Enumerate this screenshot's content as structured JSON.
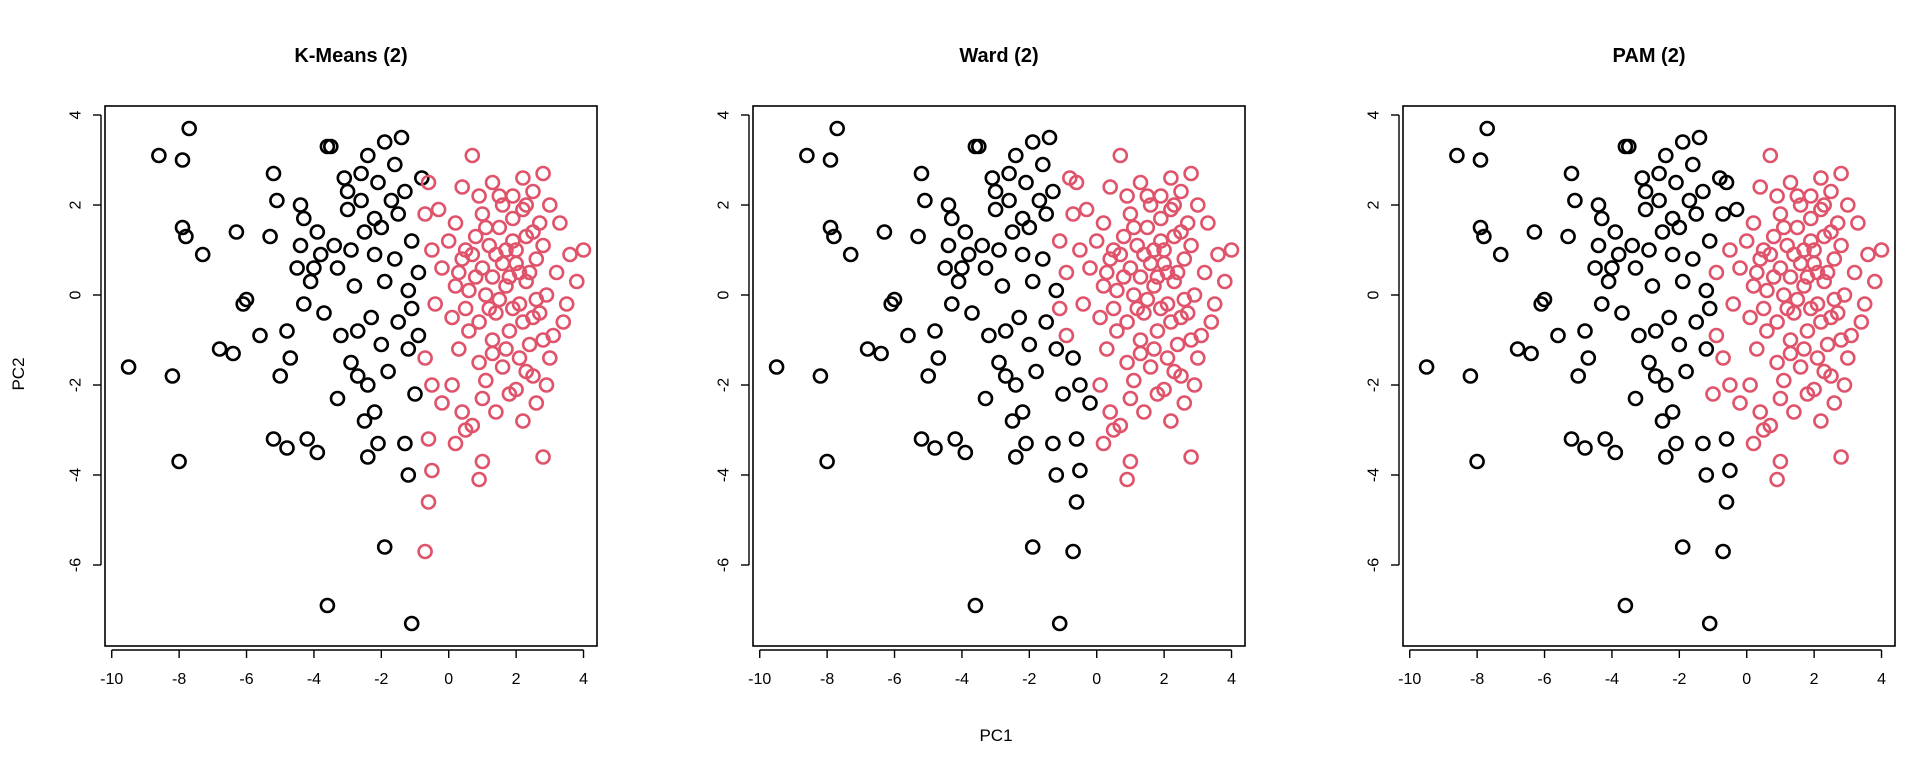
{
  "figure": {
    "x_label": "PC1",
    "y_label": "PC2"
  },
  "colors": {
    "cluster_1": "#000000",
    "cluster_2": "#DF536B"
  },
  "chart_data": [
    {
      "type": "scatter",
      "title": "K-Means (2)",
      "method": "kmeans",
      "xlim": [
        -10,
        4
      ],
      "ylim": [
        -7,
        4
      ],
      "x_ticks": [
        -10,
        -8,
        -6,
        -4,
        -2,
        0,
        2,
        4
      ],
      "y_ticks": [
        -6,
        -4,
        -2,
        0,
        2,
        4
      ],
      "grid": false,
      "legend": "none",
      "series": [
        {
          "cluster": 1,
          "color": "#000000"
        },
        {
          "cluster": 2,
          "color": "#DF536B"
        }
      ]
    },
    {
      "type": "scatter",
      "title": "Ward (2)",
      "method": "ward",
      "xlim": [
        -10,
        4
      ],
      "ylim": [
        -7,
        4
      ],
      "x_ticks": [
        -10,
        -8,
        -6,
        -4,
        -2,
        0,
        2,
        4
      ],
      "y_ticks": [
        -6,
        -4,
        -2,
        0,
        2,
        4
      ],
      "grid": false,
      "legend": "none",
      "series": [
        {
          "cluster": 1,
          "color": "#000000"
        },
        {
          "cluster": 2,
          "color": "#DF536B"
        }
      ]
    },
    {
      "type": "scatter",
      "title": "PAM (2)",
      "method": "pam",
      "xlim": [
        -10,
        4
      ],
      "ylim": [
        -7,
        4
      ],
      "x_ticks": [
        -10,
        -8,
        -6,
        -4,
        -2,
        0,
        2,
        4
      ],
      "y_ticks": [
        -6,
        -4,
        -2,
        0,
        2,
        4
      ],
      "grid": false,
      "legend": "none",
      "series": [
        {
          "cluster": 1,
          "color": "#000000"
        },
        {
          "cluster": 2,
          "color": "#DF536B"
        }
      ]
    }
  ],
  "points": [
    [
      -9.5,
      -1.6
    ],
    [
      -8.2,
      -1.8
    ],
    [
      -8.0,
      -3.7
    ],
    [
      -8.6,
      3.1
    ],
    [
      -7.9,
      3.0
    ],
    [
      -7.7,
      3.7
    ],
    [
      -7.9,
      1.5
    ],
    [
      -7.8,
      1.3
    ],
    [
      -7.3,
      0.9
    ],
    [
      -6.8,
      -1.2
    ],
    [
      -6.4,
      -1.3
    ],
    [
      -6.3,
      1.4
    ],
    [
      -6.0,
      -0.1
    ],
    [
      -6.1,
      -0.2
    ],
    [
      -5.6,
      -0.9
    ],
    [
      -5.2,
      2.7
    ],
    [
      -5.1,
      2.1
    ],
    [
      -5.3,
      1.3
    ],
    [
      -5.0,
      -1.8
    ],
    [
      -4.8,
      -0.8
    ],
    [
      -4.7,
      -1.4
    ],
    [
      -4.5,
      0.6
    ],
    [
      -4.4,
      2.0
    ],
    [
      -4.3,
      1.7
    ],
    [
      -4.1,
      0.3
    ],
    [
      -4.0,
      0.6
    ],
    [
      -4.3,
      -0.2
    ],
    [
      -3.9,
      1.4
    ],
    [
      -3.8,
      0.9
    ],
    [
      -3.6,
      3.3
    ],
    [
      -3.5,
      3.3
    ],
    [
      -3.4,
      1.1
    ],
    [
      -3.3,
      0.6
    ],
    [
      -3.2,
      -0.9
    ],
    [
      -3.1,
      2.6
    ],
    [
      -3.0,
      1.9
    ],
    [
      -2.9,
      -1.5
    ],
    [
      -2.8,
      0.2
    ],
    [
      -2.7,
      -0.8
    ],
    [
      -2.6,
      2.7
    ],
    [
      -2.6,
      2.1
    ],
    [
      -2.5,
      1.4
    ],
    [
      -2.4,
      3.1
    ],
    [
      -2.4,
      -2.0
    ],
    [
      -2.3,
      -0.5
    ],
    [
      -2.2,
      0.9
    ],
    [
      -2.1,
      2.5
    ],
    [
      -2.0,
      1.5
    ],
    [
      -2.0,
      -1.1
    ],
    [
      -1.9,
      3.4
    ],
    [
      -1.9,
      0.3
    ],
    [
      -1.8,
      -1.7
    ],
    [
      -1.7,
      2.1
    ],
    [
      -1.6,
      0.8
    ],
    [
      -1.5,
      -0.6
    ],
    [
      -1.5,
      1.8
    ],
    [
      -1.4,
      3.5
    ],
    [
      -1.3,
      2.3
    ],
    [
      -1.2,
      -1.2
    ],
    [
      -1.2,
      0.1
    ],
    [
      -1.1,
      1.2
    ],
    [
      -1.0,
      -2.2
    ],
    [
      -1.3,
      -3.3
    ],
    [
      -1.2,
      -4.0
    ],
    [
      -1.1,
      -0.3
    ],
    [
      -0.9,
      0.5
    ],
    [
      -0.8,
      2.6
    ],
    [
      -0.7,
      1.8
    ],
    [
      -0.9,
      -0.9
    ],
    [
      -5.2,
      -3.2
    ],
    [
      -4.8,
      -3.4
    ],
    [
      -4.2,
      -3.2
    ],
    [
      -3.9,
      -3.5
    ],
    [
      -2.5,
      -2.8
    ],
    [
      -2.4,
      -3.6
    ],
    [
      -2.1,
      -3.3
    ],
    [
      -1.9,
      -5.6
    ],
    [
      -3.6,
      -6.9
    ],
    [
      -1.1,
      -7.3
    ],
    [
      -2.2,
      -2.6
    ],
    [
      -2.7,
      -1.8
    ],
    [
      -3.3,
      -2.3
    ],
    [
      -4.4,
      1.1
    ],
    [
      -3.7,
      -0.4
    ],
    [
      -2.9,
      1.0
    ],
    [
      -2.2,
      1.7
    ],
    [
      -1.6,
      2.9
    ],
    [
      -3.0,
      2.3
    ],
    [
      0.2,
      1.6
    ],
    [
      0.5,
      1.0
    ],
    [
      0.8,
      0.4
    ],
    [
      1.0,
      1.8
    ],
    [
      1.2,
      -0.3
    ],
    [
      1.4,
      0.9
    ],
    [
      1.5,
      1.5
    ],
    [
      1.7,
      0.2
    ],
    [
      1.8,
      -0.8
    ],
    [
      1.9,
      1.2
    ],
    [
      2.0,
      0.7
    ],
    [
      2.1,
      -0.2
    ],
    [
      2.2,
      1.9
    ],
    [
      2.3,
      0.3
    ],
    [
      2.4,
      -1.1
    ],
    [
      2.5,
      1.4
    ],
    [
      2.6,
      0.8
    ],
    [
      2.7,
      -0.4
    ],
    [
      2.8,
      1.1
    ],
    [
      2.9,
      0.0
    ],
    [
      3.0,
      -1.4
    ],
    [
      3.2,
      0.5
    ],
    [
      3.4,
      -0.6
    ],
    [
      3.6,
      0.9
    ],
    [
      4.0,
      1.0
    ],
    [
      0.1,
      -0.5
    ],
    [
      0.3,
      -1.2
    ],
    [
      0.6,
      -0.8
    ],
    [
      0.9,
      -1.5
    ],
    [
      1.1,
      -1.9
    ],
    [
      1.3,
      -1.0
    ],
    [
      1.6,
      -1.6
    ],
    [
      2.0,
      -2.1
    ],
    [
      2.3,
      -1.7
    ],
    [
      2.6,
      -2.4
    ],
    [
      2.8,
      -1.0
    ],
    [
      3.1,
      -0.9
    ],
    [
      0.4,
      2.4
    ],
    [
      0.7,
      3.1
    ],
    [
      0.9,
      2.2
    ],
    [
      1.3,
      2.5
    ],
    [
      1.6,
      2.0
    ],
    [
      1.9,
      2.2
    ],
    [
      2.2,
      2.6
    ],
    [
      2.5,
      2.3
    ],
    [
      2.8,
      2.7
    ],
    [
      3.0,
      2.0
    ],
    [
      0.2,
      0.2
    ],
    [
      0.4,
      0.8
    ],
    [
      0.6,
      0.1
    ],
    [
      0.8,
      1.3
    ],
    [
      1.0,
      0.6
    ],
    [
      1.2,
      1.1
    ],
    [
      1.4,
      -0.4
    ],
    [
      1.6,
      0.7
    ],
    [
      1.8,
      0.4
    ],
    [
      2.0,
      1.0
    ],
    [
      2.2,
      -0.6
    ],
    [
      2.4,
      0.5
    ],
    [
      2.6,
      -0.1
    ],
    [
      0.0,
      1.2
    ],
    [
      -0.2,
      0.6
    ],
    [
      -0.4,
      -0.2
    ],
    [
      -0.3,
      1.9
    ],
    [
      -0.5,
      1.0
    ],
    [
      -0.6,
      2.5
    ],
    [
      -0.7,
      -1.4
    ],
    [
      -0.5,
      -2.0
    ],
    [
      -0.2,
      -2.4
    ],
    [
      0.1,
      -2.0
    ],
    [
      0.4,
      -2.6
    ],
    [
      0.7,
      -2.9
    ],
    [
      1.0,
      -2.3
    ],
    [
      1.4,
      -2.6
    ],
    [
      1.8,
      -2.2
    ],
    [
      2.2,
      -2.8
    ],
    [
      2.8,
      -3.6
    ],
    [
      -0.6,
      -3.2
    ],
    [
      -0.5,
      -3.9
    ],
    [
      -0.6,
      -4.6
    ],
    [
      -0.7,
      -5.7
    ],
    [
      0.9,
      -4.1
    ],
    [
      1.0,
      -3.7
    ],
    [
      0.2,
      -3.3
    ],
    [
      0.5,
      -3.0
    ],
    [
      3.3,
      1.6
    ],
    [
      3.5,
      -0.2
    ],
    [
      3.8,
      0.3
    ],
    [
      1.1,
      0.0
    ],
    [
      1.3,
      0.4
    ],
    [
      1.5,
      -0.1
    ],
    [
      1.7,
      1.0
    ],
    [
      1.9,
      -0.3
    ],
    [
      2.1,
      0.5
    ],
    [
      2.3,
      1.3
    ],
    [
      2.5,
      -0.5
    ],
    [
      0.3,
      0.5
    ],
    [
      0.5,
      -0.3
    ],
    [
      0.7,
      0.9
    ],
    [
      0.9,
      -0.6
    ],
    [
      1.1,
      1.5
    ],
    [
      1.3,
      -1.3
    ],
    [
      1.5,
      2.2
    ],
    [
      1.7,
      -1.2
    ],
    [
      1.9,
      1.7
    ],
    [
      2.1,
      -1.4
    ],
    [
      2.3,
      2.0
    ],
    [
      2.5,
      -1.8
    ],
    [
      2.7,
      1.6
    ],
    [
      2.9,
      -2.0
    ]
  ]
}
